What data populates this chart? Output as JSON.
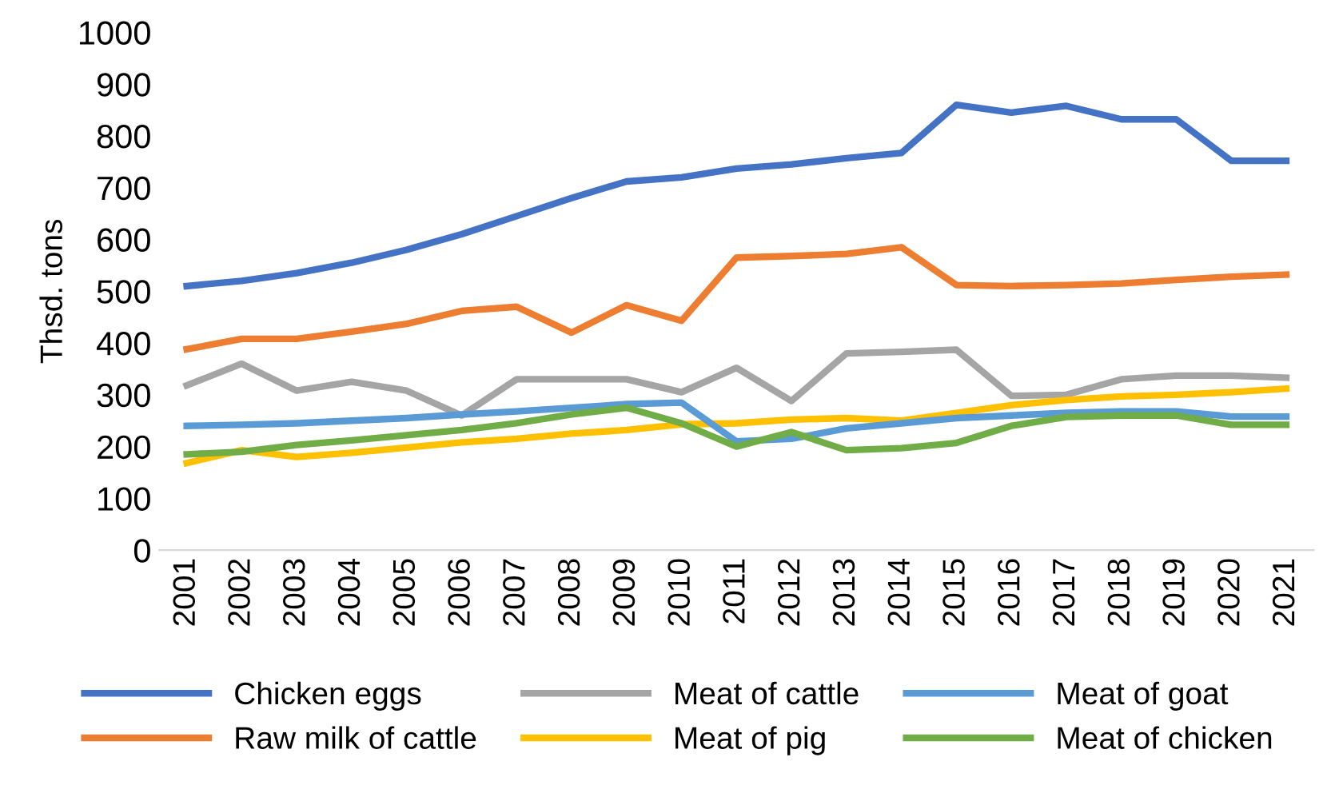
{
  "chart_data": {
    "type": "line",
    "ylabel": "Thsd. tons",
    "categories": [
      "2001",
      "2002",
      "2003",
      "2004",
      "2005",
      "2006",
      "2007",
      "2008",
      "2009",
      "2010",
      "2011",
      "2012",
      "2013",
      "2014",
      "2015",
      "2016",
      "2017",
      "2018",
      "2019",
      "2020",
      "2021"
    ],
    "ylim": [
      0,
      1000
    ],
    "yticks": [
      0,
      100,
      200,
      300,
      400,
      500,
      600,
      700,
      800,
      900,
      1000
    ],
    "grid": false,
    "legend": "bottom",
    "line_style": "solid",
    "series": [
      {
        "name": "Chicken eggs",
        "color": "#4472c4",
        "values": [
          510,
          520,
          535,
          555,
          580,
          610,
          645,
          680,
          712,
          720,
          737,
          745,
          757,
          767,
          860,
          845,
          858,
          832,
          832,
          752,
          752
        ]
      },
      {
        "name": "Raw milk of cattle",
        "color": "#ed7d31",
        "values": [
          388,
          408,
          408,
          422,
          437,
          462,
          470,
          420,
          473,
          443,
          565,
          568,
          572,
          585,
          512,
          510,
          512,
          515,
          522,
          528,
          532
        ]
      },
      {
        "name": "Meat of cattle",
        "color": "#a5a5a5",
        "values": [
          318,
          360,
          308,
          325,
          308,
          260,
          330,
          330,
          330,
          305,
          352,
          288,
          380,
          383,
          387,
          298,
          300,
          330,
          337,
          337,
          333
        ]
      },
      {
        "name": "Meat of pig",
        "color": "#ffc000",
        "values": [
          168,
          193,
          180,
          188,
          198,
          208,
          215,
          225,
          232,
          243,
          245,
          252,
          255,
          250,
          265,
          280,
          290,
          297,
          300,
          305,
          312
        ]
      },
      {
        "name": "Meat of goat",
        "color": "#5b9bd5",
        "values": [
          240,
          242,
          245,
          250,
          255,
          262,
          268,
          275,
          282,
          285,
          210,
          215,
          235,
          245,
          255,
          260,
          265,
          268,
          268,
          258,
          258
        ]
      },
      {
        "name": "Meat of chicken",
        "color": "#70ad47",
        "values": [
          185,
          190,
          203,
          212,
          222,
          232,
          245,
          262,
          275,
          245,
          200,
          228,
          193,
          197,
          207,
          240,
          257,
          260,
          260,
          242,
          242
        ]
      }
    ]
  }
}
